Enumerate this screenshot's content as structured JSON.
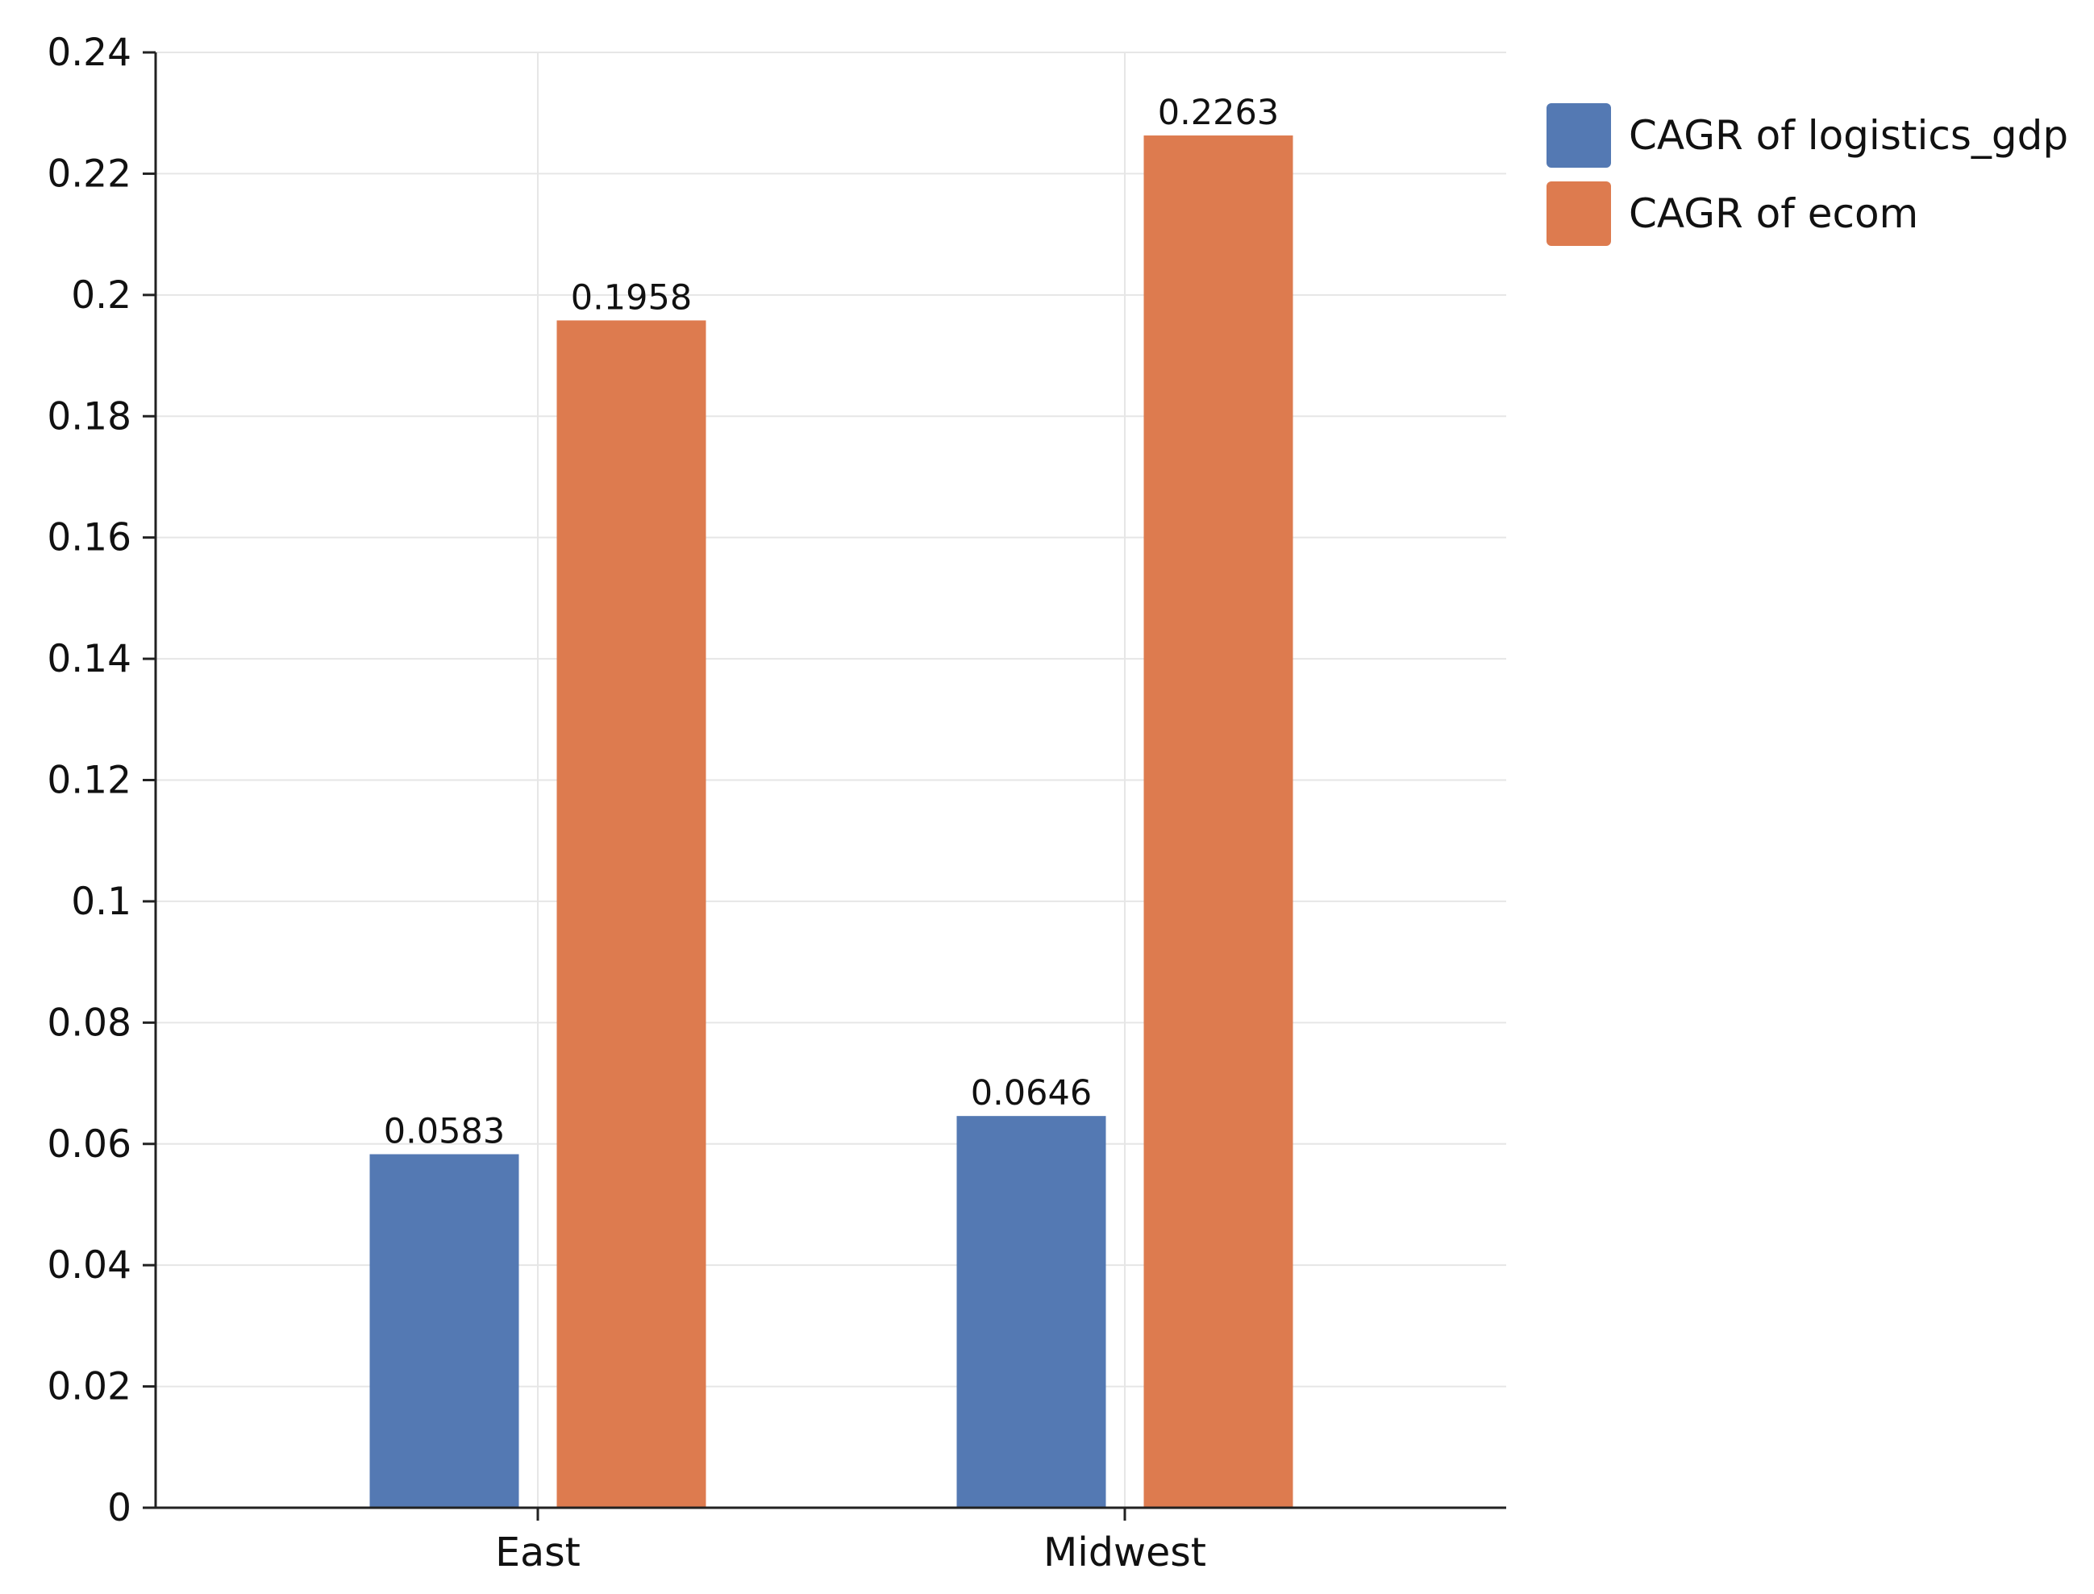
{
  "chart_data": {
    "type": "bar",
    "categories": [
      "East",
      "Midwest"
    ],
    "series": [
      {
        "name": "CAGR of logistics_gdp",
        "values": [
          0.0583,
          0.0646
        ],
        "color": "#5479b3"
      },
      {
        "name": "CAGR of ecom",
        "values": [
          0.1958,
          0.2263
        ],
        "color": "#dd7b4f"
      }
    ],
    "data_labels": [
      [
        "0.0583",
        "0.0646"
      ],
      [
        "0.1958",
        "0.2263"
      ]
    ],
    "ylim": [
      0,
      0.24
    ],
    "yticks": [
      0,
      0.02,
      0.04,
      0.06,
      0.08,
      0.1,
      0.12,
      0.14,
      0.16,
      0.18,
      0.2,
      0.22,
      0.24
    ],
    "ytick_labels": [
      "0",
      "0.02",
      "0.04",
      "0.06",
      "0.08",
      "0.1",
      "0.12",
      "0.14",
      "0.16",
      "0.18",
      "0.2",
      "0.22",
      "0.24"
    ],
    "grid": true,
    "legend_position": "top-right",
    "title": "",
    "xlabel": "",
    "ylabel": ""
  }
}
